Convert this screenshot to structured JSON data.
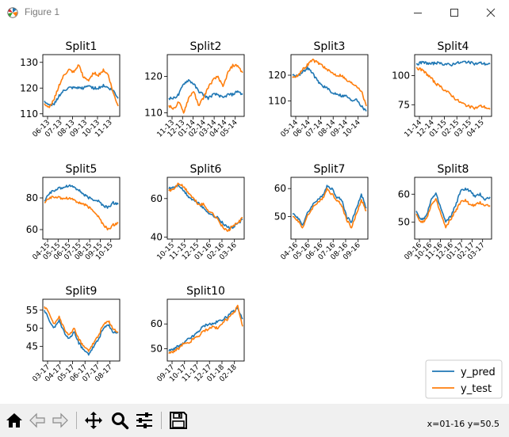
{
  "window": {
    "title": "Figure 1",
    "icon": "matplotlib-logo-icon",
    "buttons": [
      "minimize-icon",
      "maximize-icon",
      "close-icon"
    ]
  },
  "toolbar": {
    "buttons": [
      "home-icon",
      "back-arrow-icon",
      "forward-arrow-icon",
      "pan-move-icon",
      "zoom-magnifier-icon",
      "configure-subplots-icon",
      "save-floppy-icon"
    ],
    "coords": "x=01-16 y=50.5"
  },
  "legend": {
    "position": "lower-right",
    "entries": [
      {
        "label": "y_pred",
        "color": "#1f77b4"
      },
      {
        "label": "y_test",
        "color": "#ff7f0e"
      }
    ]
  },
  "chart_data": [
    {
      "type": "line",
      "title": "Split1",
      "xticks": [
        "06-13",
        "07-13",
        "08-13",
        "09-13",
        "10-13",
        "11-13"
      ],
      "yticks": [
        110,
        120,
        130
      ],
      "ylim": [
        109,
        133
      ],
      "series": [
        {
          "name": "y_pred",
          "color": "#1f77b4",
          "y": [
            115,
            113,
            114,
            117,
            119,
            120,
            120,
            120,
            120,
            121,
            120,
            120,
            121,
            120,
            119,
            116
          ]
        },
        {
          "name": "y_test",
          "color": "#ff7f0e",
          "y": [
            114,
            112,
            116,
            121,
            125,
            127,
            126,
            129,
            124,
            123,
            126,
            125,
            127,
            125,
            118,
            113
          ]
        }
      ]
    },
    {
      "type": "line",
      "title": "Split2",
      "xticks": [
        "11-13",
        "12-13",
        "01-14",
        "02-14",
        "03-14",
        "04-14",
        "05-14"
      ],
      "yticks": [
        110,
        120
      ],
      "ylim": [
        109,
        126
      ],
      "series": [
        {
          "name": "y_pred",
          "color": "#1f77b4",
          "y": [
            114,
            114,
            115,
            118,
            119,
            118,
            116,
            115,
            114,
            115,
            115,
            114,
            115,
            115,
            116,
            115
          ]
        },
        {
          "name": "y_test",
          "color": "#ff7f0e",
          "y": [
            112,
            111,
            113,
            110,
            114,
            116,
            112,
            114,
            117,
            119,
            120,
            117,
            121,
            123,
            123,
            121
          ]
        }
      ]
    },
    {
      "type": "line",
      "title": "Split3",
      "xticks": [
        "05-14",
        "06-14",
        "07-14",
        "08-14",
        "09-14",
        "10-14"
      ],
      "yticks": [
        110,
        120
      ],
      "ylim": [
        104,
        128
      ],
      "series": [
        {
          "name": "y_pred",
          "color": "#1f77b4",
          "y": [
            120,
            120,
            121,
            123,
            121,
            118,
            116,
            115,
            113,
            113,
            112,
            112,
            110,
            111,
            108,
            106
          ]
        },
        {
          "name": "y_test",
          "color": "#ff7f0e",
          "y": [
            119,
            120,
            122,
            124,
            126,
            125,
            124,
            122,
            121,
            120,
            120,
            118,
            117,
            116,
            114,
            108
          ]
        }
      ]
    },
    {
      "type": "line",
      "title": "Split4",
      "xticks": [
        "11-14",
        "12-14",
        "01-15",
        "02-15",
        "03-15",
        "04-15"
      ],
      "yticks": [
        75,
        100
      ],
      "ylim": [
        65,
        118
      ],
      "series": [
        {
          "name": "y_pred",
          "color": "#1f77b4",
          "y": [
            110,
            111,
            111,
            110,
            111,
            110,
            110,
            109,
            111,
            111,
            112,
            111,
            110,
            111,
            110,
            110
          ]
        },
        {
          "name": "y_test",
          "color": "#ff7f0e",
          "y": [
            107,
            105,
            102,
            98,
            93,
            90,
            87,
            84,
            80,
            77,
            75,
            73,
            72,
            74,
            73,
            71
          ]
        }
      ]
    },
    {
      "type": "line",
      "title": "Split5",
      "xticks": [
        "04-15",
        "05-15",
        "06-15",
        "07-15",
        "08-15",
        "09-15",
        "10-15"
      ],
      "yticks": [
        60,
        80
      ],
      "ylim": [
        54,
        93
      ],
      "series": [
        {
          "name": "y_pred",
          "color": "#1f77b4",
          "y": [
            78,
            83,
            85,
            86,
            87,
            88,
            87,
            85,
            82,
            80,
            79,
            78,
            75,
            74,
            77,
            76
          ]
        },
        {
          "name": "y_test",
          "color": "#ff7f0e",
          "y": [
            77,
            80,
            81,
            80,
            80,
            80,
            79,
            77,
            76,
            74,
            72,
            68,
            63,
            60,
            63,
            64
          ]
        }
      ]
    },
    {
      "type": "line",
      "title": "Split6",
      "xticks": [
        "10-15",
        "11-15",
        "12-15",
        "01-16",
        "02-16",
        "03-16"
      ],
      "yticks": [
        40,
        60
      ],
      "ylim": [
        39,
        71
      ],
      "series": [
        {
          "name": "y_pred",
          "color": "#1f77b4",
          "y": [
            65,
            66,
            67,
            64,
            61,
            59,
            58,
            55,
            53,
            51,
            50,
            47,
            45,
            45,
            47,
            49
          ]
        },
        {
          "name": "y_test",
          "color": "#ff7f0e",
          "y": [
            64,
            65,
            68,
            66,
            63,
            60,
            57,
            57,
            54,
            52,
            49,
            45,
            43,
            46,
            47,
            50
          ]
        }
      ]
    },
    {
      "type": "line",
      "title": "Split7",
      "xticks": [
        "04-16",
        "05-16",
        "06-16",
        "07-16",
        "08-16",
        "09-16"
      ],
      "yticks": [
        50,
        60
      ],
      "ylim": [
        42,
        64
      ],
      "series": [
        {
          "name": "y_pred",
          "color": "#1f77b4",
          "y": [
            51,
            50,
            47,
            51,
            54,
            56,
            57,
            61,
            60,
            57,
            56,
            50,
            48,
            53,
            58,
            53
          ]
        },
        {
          "name": "y_test",
          "color": "#ff7f0e",
          "y": [
            50,
            49,
            46,
            50,
            53,
            55,
            56,
            60,
            58,
            56,
            54,
            49,
            46,
            51,
            56,
            52
          ]
        }
      ]
    },
    {
      "type": "line",
      "title": "Split8",
      "xticks": [
        "09-16",
        "10-16",
        "11-16",
        "12-16",
        "01-17",
        "02-17",
        "03-17"
      ],
      "yticks": [
        50,
        60
      ],
      "ylim": [
        44,
        66
      ],
      "series": [
        {
          "name": "y_pred",
          "color": "#1f77b4",
          "y": [
            54,
            51,
            52,
            58,
            60,
            55,
            50,
            52,
            56,
            61,
            62,
            61,
            59,
            60,
            58,
            59
          ]
        },
        {
          "name": "y_test",
          "color": "#ff7f0e",
          "y": [
            53,
            50,
            51,
            56,
            58,
            53,
            48,
            51,
            54,
            57,
            58,
            56,
            56,
            57,
            56,
            56
          ]
        }
      ]
    },
    {
      "type": "line",
      "title": "Split9",
      "xticks": [
        "03-17",
        "04-17",
        "05-17",
        "06-17",
        "07-17",
        "08-17"
      ],
      "yticks": [
        45,
        50,
        55
      ],
      "ylim": [
        41,
        58
      ],
      "series": [
        {
          "name": "y_pred",
          "color": "#1f77b4",
          "y": [
            55,
            52,
            50,
            52,
            49,
            47,
            49,
            46,
            44,
            43,
            45,
            47,
            50,
            51,
            49,
            49
          ]
        },
        {
          "name": "y_test",
          "color": "#ff7f0e",
          "y": [
            56,
            54,
            51,
            53,
            50,
            48,
            50,
            47,
            45,
            44,
            46,
            48,
            51,
            52,
            50,
            49
          ]
        }
      ]
    },
    {
      "type": "line",
      "title": "Split10",
      "xticks": [
        "09-17",
        "10-17",
        "11-17",
        "12-17",
        "01-18",
        "02-18"
      ],
      "yticks": [
        50,
        60
      ],
      "ylim": [
        45,
        70
      ],
      "series": [
        {
          "name": "y_pred",
          "color": "#1f77b4",
          "y": [
            49,
            50,
            51,
            52,
            54,
            55,
            57,
            59,
            60,
            60,
            61,
            62,
            63,
            65,
            66,
            62
          ]
        },
        {
          "name": "y_test",
          "color": "#ff7f0e",
          "y": [
            48,
            49,
            50,
            52,
            52,
            54,
            55,
            57,
            58,
            59,
            58,
            61,
            62,
            64,
            67,
            59
          ]
        }
      ]
    }
  ]
}
